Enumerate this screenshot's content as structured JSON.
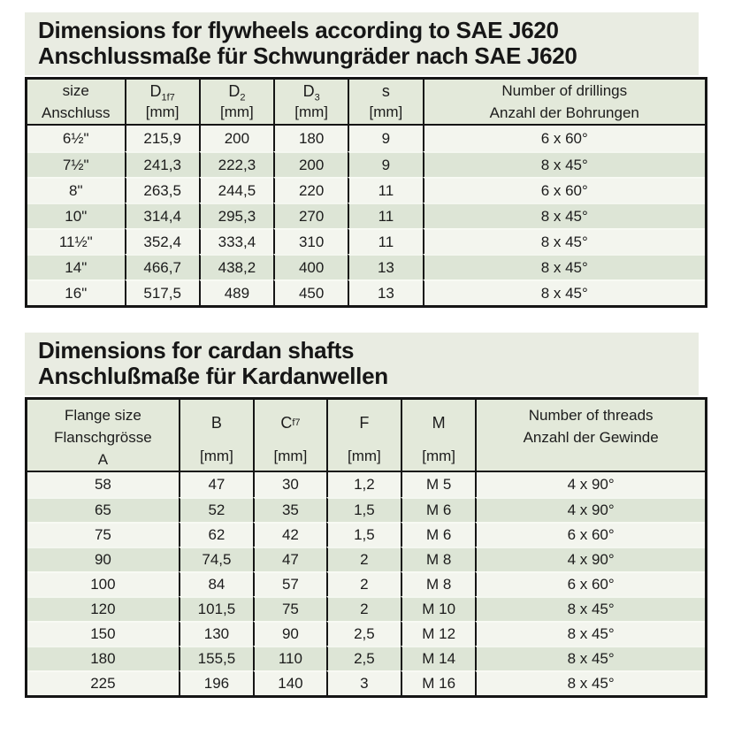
{
  "colors": {
    "page_bg": "#ffffff",
    "panel_bg": "#e9ece2",
    "header_bg": "#e3e9da",
    "row_light": "#f3f5ee",
    "row_alt": "#dde5d6",
    "border": "#151515",
    "text": "#1c1c1c"
  },
  "flywheels": {
    "title_en": "Dimensions for flywheels according to SAE J620",
    "title_de": "Anschlussmaße für Schwungräder nach SAE J620",
    "columns": [
      {
        "kind": "lines",
        "lines": [
          "size",
          "Anschluss"
        ]
      },
      {
        "kind": "sym",
        "sym": "D",
        "sub": "1f7",
        "unit": "[mm]"
      },
      {
        "kind": "sym",
        "sym": "D",
        "sub": "2",
        "unit": "[mm]"
      },
      {
        "kind": "sym",
        "sym": "D",
        "sub": "3",
        "unit": "[mm]"
      },
      {
        "kind": "sym",
        "sym": "s",
        "sub": "",
        "unit": "[mm]"
      },
      {
        "kind": "lines",
        "lines": [
          "Number of drillings",
          "Anzahl der Bohrungen"
        ]
      }
    ],
    "rows": [
      [
        "6½\"",
        "215,9",
        "200",
        "180",
        "9",
        "6 x 60°"
      ],
      [
        "7½\"",
        "241,3",
        "222,3",
        "200",
        "9",
        "8 x 45°"
      ],
      [
        "8\"",
        "263,5",
        "244,5",
        "220",
        "11",
        "6 x 60°"
      ],
      [
        "10\"",
        "314,4",
        "295,3",
        "270",
        "11",
        "8 x 45°"
      ],
      [
        "11½\"",
        "352,4",
        "333,4",
        "310",
        "11",
        "8 x 45°"
      ],
      [
        "14\"",
        "466,7",
        "438,2",
        "400",
        "13",
        "8 x 45°"
      ],
      [
        "16\"",
        "517,5",
        "489",
        "450",
        "13",
        "8 x 45°"
      ]
    ]
  },
  "cardan": {
    "title_en": "Dimensions for cardan shafts",
    "title_de": "Anschlußmaße für Kardanwellen",
    "columns": [
      {
        "kind": "lines",
        "lines": [
          "Flange size",
          "Flanschgrösse",
          "A"
        ]
      },
      {
        "kind": "sym",
        "sym": "B",
        "sub": "",
        "unit": "[mm]"
      },
      {
        "kind": "sym",
        "sym": "C",
        "sub": "f7",
        "unit": "[mm]"
      },
      {
        "kind": "sym",
        "sym": "F",
        "sub": "",
        "unit": "[mm]"
      },
      {
        "kind": "sym",
        "sym": "M",
        "sub": "",
        "unit": "[mm]"
      },
      {
        "kind": "lines",
        "lines": [
          "Number of threads",
          "Anzahl der Gewinde"
        ]
      }
    ],
    "rows": [
      [
        "58",
        "47",
        "30",
        "1,2",
        "M 5",
        "4 x 90°"
      ],
      [
        "65",
        "52",
        "35",
        "1,5",
        "M 6",
        "4 x 90°"
      ],
      [
        "75",
        "62",
        "42",
        "1,5",
        "M 6",
        "6 x 60°"
      ],
      [
        "90",
        "74,5",
        "47",
        "2",
        "M 8",
        "4 x 90°"
      ],
      [
        "100",
        "84",
        "57",
        "2",
        "M 8",
        "6 x 60°"
      ],
      [
        "120",
        "101,5",
        "75",
        "2",
        "M 10",
        "8 x 45°"
      ],
      [
        "150",
        "130",
        "90",
        "2,5",
        "M 12",
        "8 x 45°"
      ],
      [
        "180",
        "155,5",
        "110",
        "2,5",
        "M 14",
        "8 x 45°"
      ],
      [
        "225",
        "196",
        "140",
        "3",
        "M 16",
        "8 x 45°"
      ]
    ]
  }
}
